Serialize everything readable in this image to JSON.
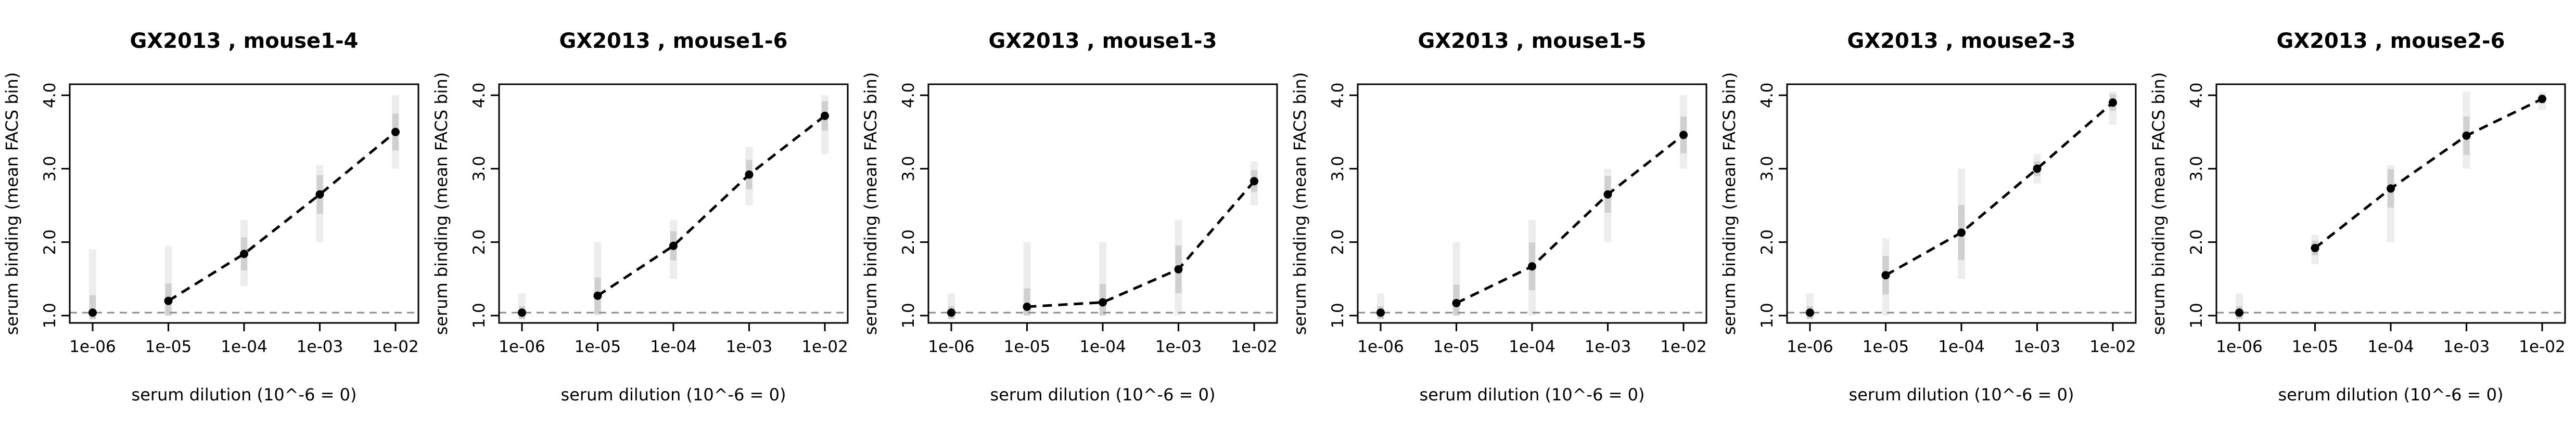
{
  "chart_data": [
    {
      "type": "line",
      "title": "GX2013 , mouse1-4",
      "xlabel": "serum dilution (10^-6 = 0)",
      "ylabel": "serum binding (mean FACS bin)",
      "x_ticks": [
        "1e-06",
        "1e-05",
        "1e-04",
        "1e-03",
        "1e-02"
      ],
      "y_ticks": [
        "1.0",
        "2.0",
        "3.0",
        "4.0"
      ],
      "ylim": [
        0.9,
        4.15
      ],
      "baseline": 1.04,
      "x": [
        "1e-06",
        "1e-05",
        "1e-04",
        "1e-03",
        "1e-02"
      ],
      "mean": [
        1.04,
        1.2,
        1.84,
        2.65,
        3.5
      ],
      "spread": [
        [
          0.95,
          1.9
        ],
        [
          1.0,
          1.95
        ],
        [
          1.4,
          2.3
        ],
        [
          2.0,
          3.05
        ],
        [
          3.0,
          4.0
        ]
      ],
      "plotted_points": [
        true,
        true,
        true,
        true,
        true
      ],
      "line_start_index": 1
    },
    {
      "type": "line",
      "title": "GX2013 , mouse1-6",
      "xlabel": "serum dilution (10^-6 = 0)",
      "ylabel": "serum binding (mean FACS bin)",
      "x_ticks": [
        "1e-06",
        "1e-05",
        "1e-04",
        "1e-03",
        "1e-02"
      ],
      "y_ticks": [
        "1.0",
        "2.0",
        "3.0",
        "4.0"
      ],
      "ylim": [
        0.9,
        4.15
      ],
      "baseline": 1.04,
      "x": [
        "1e-06",
        "1e-05",
        "1e-04",
        "1e-03",
        "1e-02"
      ],
      "mean": [
        1.04,
        1.27,
        1.95,
        2.92,
        3.72
      ],
      "spread": [
        [
          0.95,
          1.3
        ],
        [
          1.0,
          2.0
        ],
        [
          1.5,
          2.3
        ],
        [
          2.5,
          3.3
        ],
        [
          3.2,
          4.0
        ]
      ],
      "plotted_points": [
        true,
        true,
        true,
        true,
        true
      ],
      "line_start_index": 1
    },
    {
      "type": "line",
      "title": "GX2013 , mouse1-3",
      "xlabel": "serum dilution (10^-6 = 0)",
      "ylabel": "serum binding (mean FACS bin)",
      "x_ticks": [
        "1e-06",
        "1e-05",
        "1e-04",
        "1e-03",
        "1e-02"
      ],
      "y_ticks": [
        "1.0",
        "2.0",
        "3.0",
        "4.0"
      ],
      "ylim": [
        0.9,
        4.15
      ],
      "baseline": 1.04,
      "x": [
        "1e-06",
        "1e-05",
        "1e-04",
        "1e-03",
        "1e-02"
      ],
      "mean": [
        1.04,
        1.12,
        1.18,
        1.63,
        2.83
      ],
      "spread": [
        [
          0.95,
          1.3
        ],
        [
          1.0,
          2.0
        ],
        [
          1.0,
          2.0
        ],
        [
          1.0,
          2.3
        ],
        [
          2.5,
          3.1
        ]
      ],
      "plotted_points": [
        true,
        true,
        true,
        true,
        true
      ],
      "line_start_index": 1
    },
    {
      "type": "line",
      "title": "GX2013 , mouse1-5",
      "xlabel": "serum dilution (10^-6 = 0)",
      "ylabel": "serum binding (mean FACS bin)",
      "x_ticks": [
        "1e-06",
        "1e-05",
        "1e-04",
        "1e-03",
        "1e-02"
      ],
      "y_ticks": [
        "1.0",
        "2.0",
        "3.0",
        "4.0"
      ],
      "ylim": [
        0.9,
        4.15
      ],
      "baseline": 1.04,
      "x": [
        "1e-06",
        "1e-05",
        "1e-04",
        "1e-03",
        "1e-02"
      ],
      "mean": [
        1.04,
        1.17,
        1.67,
        2.65,
        3.46
      ],
      "spread": [
        [
          0.95,
          1.3
        ],
        [
          1.0,
          2.0
        ],
        [
          1.0,
          2.3
        ],
        [
          2.0,
          3.0
        ],
        [
          3.0,
          4.0
        ]
      ],
      "plotted_points": [
        true,
        true,
        true,
        true,
        true
      ],
      "line_start_index": 1
    },
    {
      "type": "line",
      "title": "GX2013 , mouse2-3",
      "xlabel": "serum dilution (10^-6 = 0)",
      "ylabel": "serum binding (mean FACS bin)",
      "x_ticks": [
        "1e-06",
        "1e-05",
        "1e-04",
        "1e-03",
        "1e-02"
      ],
      "y_ticks": [
        "1.0",
        "2.0",
        "3.0",
        "4.0"
      ],
      "ylim": [
        0.9,
        4.15
      ],
      "baseline": 1.04,
      "x": [
        "1e-06",
        "1e-05",
        "1e-04",
        "1e-03",
        "1e-02"
      ],
      "mean": [
        1.04,
        1.55,
        2.13,
        3.0,
        3.9
      ],
      "spread": [
        [
          0.95,
          1.3
        ],
        [
          1.0,
          2.05
        ],
        [
          1.5,
          3.0
        ],
        [
          2.8,
          3.2
        ],
        [
          3.6,
          4.05
        ]
      ],
      "plotted_points": [
        true,
        true,
        true,
        true,
        true
      ],
      "line_start_index": 1
    },
    {
      "type": "line",
      "title": "GX2013 , mouse2-6",
      "xlabel": "serum dilution (10^-6 = 0)",
      "ylabel": "serum binding (mean FACS bin)",
      "x_ticks": [
        "1e-06",
        "1e-05",
        "1e-04",
        "1e-03",
        "1e-02"
      ],
      "y_ticks": [
        "1.0",
        "2.0",
        "3.0",
        "4.0"
      ],
      "ylim": [
        0.9,
        4.15
      ],
      "baseline": 1.04,
      "x": [
        "1e-06",
        "1e-05",
        "1e-04",
        "1e-03",
        "1e-02"
      ],
      "mean": [
        1.04,
        1.92,
        2.73,
        3.45,
        3.95
      ],
      "spread": [
        [
          0.95,
          1.3
        ],
        [
          1.7,
          2.1
        ],
        [
          2.0,
          3.05
        ],
        [
          3.0,
          4.05
        ],
        [
          3.8,
          4.05
        ]
      ],
      "plotted_points": [
        true,
        true,
        true,
        true,
        true
      ],
      "line_start_index": 1
    }
  ]
}
